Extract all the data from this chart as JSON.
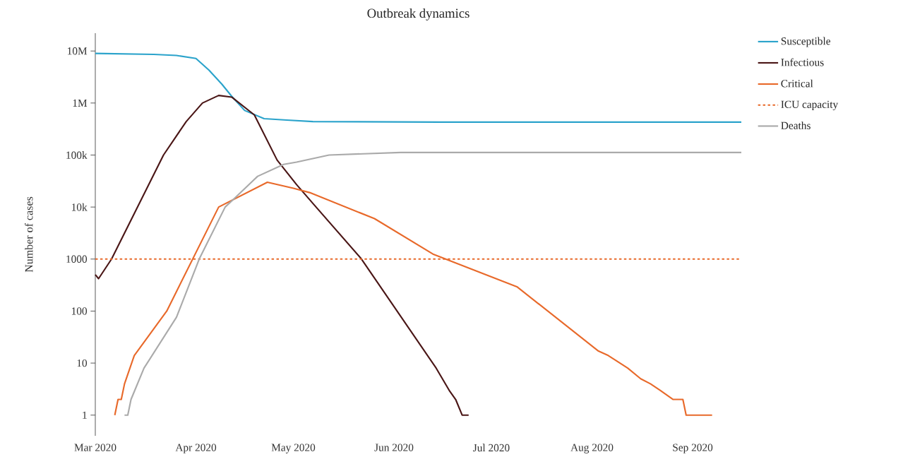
{
  "chart_data": {
    "type": "line",
    "title": "Outbreak dynamics",
    "ylabel": "Number of cases",
    "log": "y",
    "legend": "right",
    "marker": "none",
    "line_style": "solid",
    "xlim": [
      "2020-03-01",
      "2020-09-16"
    ],
    "xticks": [
      {
        "value": "2020-03-01",
        "label": "Mar 2020"
      },
      {
        "value": "2020-04-01",
        "label": "Apr 2020"
      },
      {
        "value": "2020-05-01",
        "label": "May 2020"
      },
      {
        "value": "2020-06-01",
        "label": "Jun 2020"
      },
      {
        "value": "2020-07-01",
        "label": "Jul 2020"
      },
      {
        "value": "2020-08-01",
        "label": "Aug 2020"
      },
      {
        "value": "2020-09-01",
        "label": "Sep 2020"
      }
    ],
    "ylim": [
      0.4,
      22000000
    ],
    "yticks": [
      1,
      10,
      100,
      1000,
      {
        "value": 10000,
        "label": "10k"
      },
      {
        "value": 100000,
        "label": "100k"
      },
      {
        "value": 1000000,
        "label": "1M"
      },
      {
        "value": 10000000,
        "label": "10M"
      }
    ],
    "series": [
      {
        "name": "Susceptible",
        "color": "#2ba3cb",
        "x": [
          "2020-03-01",
          "2020-03-19",
          "2020-03-26",
          "2020-04-01",
          "2020-04-05",
          "2020-04-09",
          "2020-04-12",
          "2020-04-16",
          "2020-04-22",
          "2020-04-29",
          "2020-05-07",
          "2020-06-15",
          "2020-09-16"
        ],
        "values": [
          9000000,
          8600000,
          8200000,
          7200000,
          4300000,
          2300000,
          1350000,
          720000,
          500000,
          470000,
          440000,
          430000,
          430000
        ]
      },
      {
        "name": "Infectious",
        "color": "#4a1616",
        "x": [
          "2020-03-01",
          "2020-03-02",
          "2020-03-06",
          "2020-03-14",
          "2020-03-22",
          "2020-03-29",
          "2020-04-03",
          "2020-04-08",
          "2020-04-12",
          "2020-04-19",
          "2020-04-26",
          "2020-05-02",
          "2020-05-08",
          "2020-05-22",
          "2020-06-14",
          "2020-06-18",
          "2020-06-20",
          "2020-06-22",
          "2020-06-24"
        ],
        "values": [
          500,
          420,
          1000,
          10000,
          100000,
          440000,
          1000000,
          1400000,
          1300000,
          590000,
          80000,
          27000,
          10000,
          1000,
          8,
          3,
          2,
          1,
          1
        ]
      },
      {
        "name": "Critical",
        "color": "#e8692a",
        "x": [
          "2020-03-07",
          "2020-03-08",
          "2020-03-09",
          "2020-03-10",
          "2020-03-13",
          "2020-03-23",
          "2020-03-31",
          "2020-04-08",
          "2020-04-23",
          "2020-05-01",
          "2020-05-06",
          "2020-05-26",
          "2020-06-13",
          "2020-07-09",
          "2020-08-03",
          "2020-08-06",
          "2020-08-12",
          "2020-08-16",
          "2020-08-19",
          "2020-08-22",
          "2020-08-26",
          "2020-08-29",
          "2020-08-30",
          "2020-09-07"
        ],
        "values": [
          1,
          2,
          2,
          4,
          14,
          100,
          1000,
          10000,
          30000,
          23000,
          19000,
          6000,
          1250,
          290,
          17,
          14,
          8,
          5,
          4,
          3,
          2,
          2,
          1,
          1
        ]
      },
      {
        "name": "Deaths",
        "color": "#aaaaaa",
        "x": [
          "2020-03-10",
          "2020-03-11",
          "2020-03-12",
          "2020-03-16",
          "2020-03-26",
          "2020-04-02",
          "2020-04-10",
          "2020-04-13",
          "2020-04-20",
          "2020-04-28",
          "2020-05-02",
          "2020-05-12",
          "2020-06-03",
          "2020-09-16"
        ],
        "values": [
          1,
          1,
          2,
          8,
          76,
          1000,
          10000,
          15000,
          39000,
          66000,
          73000,
          100000,
          112000,
          112000
        ]
      }
    ],
    "ref_lines": [
      {
        "axis": "y",
        "value": 1000,
        "label": "ICU capacity",
        "color": "#e8692a",
        "line_style": "dashed"
      }
    ]
  }
}
